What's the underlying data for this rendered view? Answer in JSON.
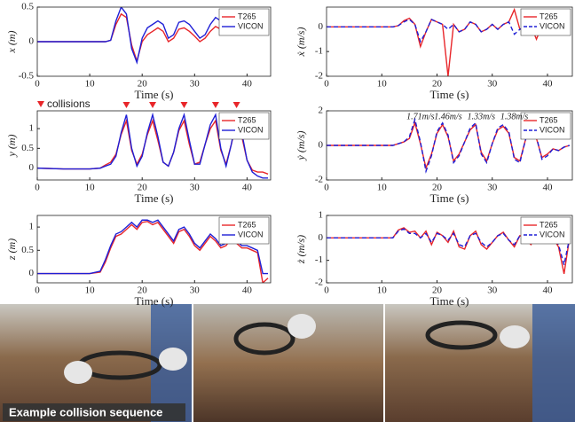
{
  "chart_data": [
    {
      "type": "line",
      "ylabel": "x (m)",
      "xlabel": "Time (s)",
      "xlim": [
        0,
        44.5
      ],
      "xticks": [
        0,
        10,
        20,
        30,
        40
      ],
      "ylim": [
        -0.5,
        0.5
      ],
      "yticks": [
        -0.5,
        0,
        0.5
      ],
      "legend": "upper-right",
      "grid": false,
      "x": [
        0,
        5,
        10,
        12,
        13,
        14,
        15,
        16,
        17,
        18,
        19,
        20,
        21,
        22,
        23,
        24,
        25,
        26,
        27,
        28,
        29,
        30,
        31,
        32,
        33,
        34,
        35,
        36,
        37,
        38,
        39,
        40,
        41,
        42,
        43,
        44
      ],
      "series": [
        {
          "name": "T265",
          "color": "#e8262a",
          "style": "solid",
          "values": [
            0,
            0,
            0,
            0,
            0,
            0.02,
            0.25,
            0.4,
            0.35,
            -0.05,
            -0.28,
            0,
            0.1,
            0.15,
            0.2,
            0.15,
            0,
            0.05,
            0.18,
            0.2,
            0.15,
            0.08,
            0,
            0.05,
            0.15,
            0.22,
            0.18,
            0.12,
            0.1,
            0.12,
            0.15,
            0.18,
            0.15,
            0.12,
            0.1,
            0.12
          ]
        },
        {
          "name": "VICON",
          "color": "#1f1fd6",
          "style": "solid",
          "values": [
            0,
            0,
            0,
            0,
            0,
            0.02,
            0.3,
            0.5,
            0.4,
            -0.1,
            -0.3,
            0.05,
            0.2,
            0.25,
            0.3,
            0.25,
            0.05,
            0.1,
            0.28,
            0.3,
            0.25,
            0.15,
            0.05,
            0.1,
            0.25,
            0.35,
            0.3,
            0.2,
            0.15,
            0.2,
            0.25,
            0.28,
            0.25,
            0.2,
            0.15,
            0.2
          ]
        }
      ]
    },
    {
      "type": "line",
      "ylabel": "y (m)",
      "xlabel": "Time (s)",
      "xlim": [
        0,
        44.5
      ],
      "xticks": [
        0,
        10,
        20,
        30,
        40
      ],
      "ylim": [
        -0.3,
        1.45
      ],
      "yticks": [
        0,
        0.5,
        1
      ],
      "legend": "upper-right",
      "grid": false,
      "collision_label": "collisions",
      "collision_color": "#e8262a",
      "collisions": [
        17,
        22,
        28,
        34,
        38
      ],
      "x": [
        0,
        5,
        10,
        12,
        13,
        14,
        15,
        16,
        17,
        18,
        19,
        20,
        21,
        22,
        23,
        24,
        25,
        26,
        27,
        28,
        29,
        30,
        31,
        32,
        33,
        34,
        35,
        36,
        37,
        38,
        39,
        40,
        41,
        42,
        43,
        44
      ],
      "series": [
        {
          "name": "T265",
          "color": "#e8262a",
          "style": "solid",
          "values": [
            0,
            -0.02,
            -0.02,
            0,
            0.08,
            0.15,
            0.35,
            0.85,
            1.2,
            0.45,
            0.1,
            0.35,
            0.85,
            1.2,
            0.7,
            0.15,
            0.05,
            0.4,
            0.95,
            1.2,
            0.6,
            0.1,
            0.15,
            0.6,
            1,
            1.2,
            0.45,
            0.1,
            0.6,
            1.15,
            0.8,
            0.2,
            -0.05,
            -0.1,
            -0.1,
            -0.15
          ]
        },
        {
          "name": "VICON",
          "color": "#1f1fd6",
          "style": "solid",
          "values": [
            0,
            -0.02,
            -0.02,
            0,
            0.05,
            0.1,
            0.3,
            0.9,
            1.35,
            0.5,
            0.05,
            0.3,
            0.9,
            1.35,
            0.8,
            0.15,
            0.05,
            0.4,
            1,
            1.35,
            0.7,
            0.1,
            0.1,
            0.6,
            1.1,
            1.35,
            0.5,
            0.05,
            0.6,
            1.3,
            0.9,
            0.2,
            -0.1,
            -0.2,
            -0.25,
            -0.25
          ]
        }
      ]
    },
    {
      "type": "line",
      "ylabel": "z (m)",
      "xlabel": "Time (s)",
      "xlim": [
        0,
        44.5
      ],
      "xticks": [
        0,
        10,
        20,
        30,
        40
      ],
      "ylim": [
        -0.2,
        1.25
      ],
      "yticks": [
        0,
        0.5,
        1
      ],
      "legend": "upper-right",
      "grid": false,
      "x": [
        0,
        5,
        10,
        12,
        13,
        14,
        15,
        16,
        17,
        18,
        19,
        20,
        21,
        22,
        23,
        24,
        25,
        26,
        27,
        28,
        29,
        30,
        31,
        32,
        33,
        34,
        35,
        36,
        37,
        38,
        39,
        40,
        41,
        42,
        43,
        44
      ],
      "series": [
        {
          "name": "T265",
          "color": "#e8262a",
          "style": "solid",
          "values": [
            0,
            0,
            0,
            0.03,
            0.25,
            0.55,
            0.8,
            0.85,
            0.95,
            1.05,
            0.95,
            1.1,
            1.12,
            1.05,
            1.1,
            0.95,
            0.8,
            0.65,
            0.9,
            0.95,
            0.8,
            0.6,
            0.5,
            0.65,
            0.8,
            0.7,
            0.55,
            0.6,
            0.75,
            0.65,
            0.55,
            0.55,
            0.5,
            0.45,
            -0.2,
            -0.1
          ]
        },
        {
          "name": "VICON",
          "color": "#1f1fd6",
          "style": "solid",
          "values": [
            0,
            0,
            0,
            0.05,
            0.3,
            0.6,
            0.85,
            0.9,
            1,
            1.1,
            1,
            1.15,
            1.15,
            1.1,
            1.15,
            1,
            0.85,
            0.7,
            0.95,
            1,
            0.85,
            0.65,
            0.55,
            0.7,
            0.85,
            0.75,
            0.6,
            0.65,
            0.8,
            0.7,
            0.6,
            0.6,
            0.55,
            0.5,
            0,
            0
          ]
        }
      ]
    },
    {
      "type": "line",
      "ylabel": "ẋ (m/s)",
      "xlabel": "Time (s)",
      "xlim": [
        0,
        44.5
      ],
      "xticks": [
        0,
        10,
        20,
        30,
        40
      ],
      "ylim": [
        -2,
        0.8
      ],
      "yticks": [
        -2,
        -1,
        0
      ],
      "legend": "upper-right",
      "grid": false,
      "x": [
        0,
        5,
        10,
        12,
        13,
        14,
        15,
        16,
        17,
        18,
        19,
        20,
        21,
        22,
        23,
        24,
        25,
        26,
        27,
        28,
        29,
        30,
        31,
        32,
        33,
        34,
        35,
        36,
        37,
        38,
        39,
        40,
        41,
        42,
        43,
        44
      ],
      "series": [
        {
          "name": "T265",
          "color": "#e8262a",
          "style": "solid",
          "values": [
            0,
            0,
            0,
            0,
            0.05,
            0.25,
            0.35,
            0.1,
            -0.8,
            -0.2,
            0.3,
            0.2,
            0.1,
            -2,
            0.1,
            -0.2,
            -0.1,
            0.2,
            0.1,
            -0.2,
            -0.1,
            0.1,
            -0.1,
            0.1,
            0.2,
            0.7,
            -0.1,
            0,
            0.05,
            -0.5,
            0.05,
            0,
            0,
            0,
            -0.1,
            0
          ]
        },
        {
          "name": "VICON",
          "color": "#1f1fd6",
          "style": "dashed",
          "values": [
            0,
            0,
            0,
            0,
            0.05,
            0.2,
            0.3,
            0.1,
            -0.6,
            -0.2,
            0.3,
            0.2,
            0.1,
            -0.1,
            0.1,
            -0.2,
            -0.1,
            0.2,
            0.1,
            -0.2,
            -0.1,
            0.1,
            -0.1,
            0.1,
            0.2,
            -0.3,
            -0.1,
            0,
            0.05,
            0,
            0.05,
            0,
            0,
            0,
            -0.1,
            0
          ]
        }
      ]
    },
    {
      "type": "line",
      "ylabel": "ẏ (m/s)",
      "xlabel": "Time (s)",
      "xlim": [
        0,
        44.5
      ],
      "xticks": [
        0,
        10,
        20,
        30,
        40
      ],
      "ylim": [
        -2,
        2
      ],
      "yticks": [
        -2,
        0,
        2
      ],
      "legend": "upper-right",
      "grid": false,
      "annotations": [
        "1.71m/s",
        "1.46m/s",
        "1.33m/s",
        "1.38m/s"
      ],
      "x": [
        0,
        5,
        10,
        12,
        13,
        14,
        15,
        16,
        17,
        18,
        19,
        20,
        21,
        22,
        23,
        24,
        25,
        26,
        27,
        28,
        29,
        30,
        31,
        32,
        33,
        34,
        35,
        36,
        37,
        38,
        39,
        40,
        41,
        42,
        43,
        44
      ],
      "series": [
        {
          "name": "T265",
          "color": "#e8262a",
          "style": "solid",
          "values": [
            0,
            0,
            0,
            0,
            0.1,
            0.2,
            0.4,
            1.3,
            0.1,
            -1.3,
            -0.5,
            0.7,
            1.2,
            0.5,
            -0.9,
            -0.5,
            0.2,
            0.9,
            1.2,
            -0.4,
            -0.9,
            0.1,
            0.9,
            1.1,
            0.7,
            -0.7,
            -0.9,
            0.3,
            1.1,
            0.4,
            -0.7,
            -0.5,
            -0.2,
            -0.3,
            -0.1,
            0
          ]
        },
        {
          "name": "VICON",
          "color": "#1f1fd6",
          "style": "dashed",
          "values": [
            0,
            0,
            0,
            0,
            0.1,
            0.2,
            0.5,
            1.5,
            0.2,
            -1.5,
            -0.6,
            0.8,
            1.3,
            0.6,
            -1,
            -0.6,
            0.2,
            1,
            1.3,
            -0.5,
            -1,
            0.1,
            1,
            1.2,
            0.8,
            -0.8,
            -1,
            0.3,
            1.2,
            0.5,
            -0.8,
            -0.6,
            -0.2,
            -0.3,
            -0.1,
            0
          ]
        }
      ]
    },
    {
      "type": "line",
      "ylabel": "ż (m/s)",
      "xlabel": "Time (s)",
      "xlim": [
        0,
        44.5
      ],
      "xticks": [
        0,
        10,
        20,
        30,
        40
      ],
      "ylim": [
        -2,
        1
      ],
      "yticks": [
        -2,
        -1,
        0,
        1
      ],
      "legend": "upper-right",
      "grid": false,
      "x": [
        0,
        5,
        10,
        12,
        13,
        14,
        15,
        16,
        17,
        18,
        19,
        20,
        21,
        22,
        23,
        24,
        25,
        26,
        27,
        28,
        29,
        30,
        31,
        32,
        33,
        34,
        35,
        36,
        37,
        38,
        39,
        40,
        41,
        42,
        43,
        44
      ],
      "series": [
        {
          "name": "T265",
          "color": "#e8262a",
          "style": "solid",
          "values": [
            0,
            0,
            0,
            0,
            0.35,
            0.45,
            0.25,
            0.3,
            0,
            0.3,
            -0.3,
            0.25,
            0.1,
            -0.2,
            0.3,
            -0.4,
            -0.5,
            0.1,
            0.3,
            -0.3,
            -0.5,
            -0.2,
            0.1,
            0.25,
            -0.1,
            -0.4,
            0.1,
            0,
            -0.3,
            0.1,
            -0.1,
            -0.1,
            0,
            -0.4,
            -1.6,
            0
          ]
        },
        {
          "name": "VICON",
          "color": "#1f1fd6",
          "style": "dashed",
          "values": [
            0,
            0,
            0,
            0,
            0.3,
            0.4,
            0.2,
            0.2,
            0,
            0.2,
            -0.2,
            0.2,
            0.1,
            -0.1,
            0.2,
            -0.3,
            -0.4,
            0.1,
            0.2,
            -0.2,
            -0.4,
            -0.2,
            0.1,
            0.2,
            -0.1,
            -0.3,
            0.1,
            0,
            -0.2,
            0.1,
            -0.1,
            -0.1,
            0,
            -0.3,
            -1.2,
            0
          ]
        }
      ]
    }
  ],
  "caption": "Example collision sequence"
}
